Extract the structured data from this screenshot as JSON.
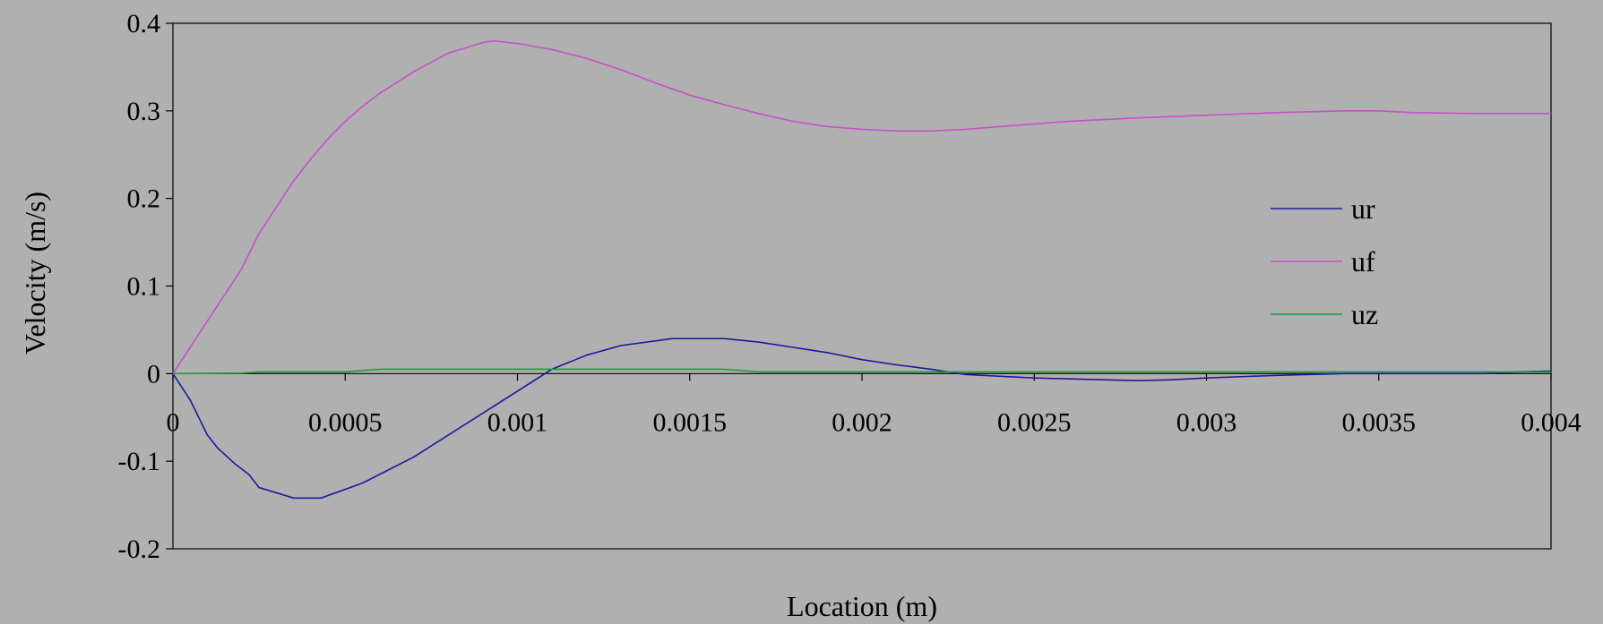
{
  "chart_data": {
    "type": "line",
    "xlabel": "Location (m)",
    "ylabel": "Velocity (m/s)",
    "xlim": [
      0,
      0.004
    ],
    "ylim": [
      -0.2,
      0.4
    ],
    "x_ticks": [
      0,
      0.0005,
      0.001,
      0.0015,
      0.002,
      0.0025,
      0.003,
      0.0035,
      0.004
    ],
    "x_tick_labels": [
      "0",
      "0.0005",
      "0.001",
      "0.0015",
      "0.002",
      "0.0025",
      "0.003",
      "0.0035",
      "0.004"
    ],
    "y_ticks": [
      -0.2,
      -0.1,
      0,
      0.1,
      0.2,
      0.3,
      0.4
    ],
    "y_tick_labels": [
      "-0.2",
      "-0.1",
      "0",
      "0.1",
      "0.2",
      "0.3",
      "0.4"
    ],
    "legend_position": "right",
    "grid": false,
    "series": [
      {
        "name": "ur",
        "color": "#1a1aa0",
        "x": [
          0,
          5e-05,
          0.0001,
          0.00013,
          0.00018,
          0.00022,
          0.00025,
          0.00035,
          0.00043,
          0.00055,
          0.0007,
          0.0009,
          0.0011,
          0.0012,
          0.0013,
          0.00145,
          0.0016,
          0.0017,
          0.0018,
          0.0019,
          0.002,
          0.0021,
          0.0022,
          0.0023,
          0.0025,
          0.0027,
          0.0028,
          0.0029,
          0.003,
          0.0032,
          0.0034,
          0.0036,
          0.0038,
          0.0039,
          0.004
        ],
        "y": [
          0,
          -0.03,
          -0.07,
          -0.085,
          -0.103,
          -0.115,
          -0.13,
          -0.142,
          -0.142,
          -0.125,
          -0.095,
          -0.045,
          0.005,
          0.021,
          0.032,
          0.04,
          0.04,
          0.036,
          0.03,
          0.024,
          0.016,
          0.01,
          0.005,
          -0.001,
          -0.005,
          -0.007,
          -0.008,
          -0.007,
          -0.005,
          -0.002,
          0,
          0,
          0,
          0.002,
          0.003
        ]
      },
      {
        "name": "uf",
        "color": "#c84fc8",
        "x": [
          0,
          5e-05,
          0.0001,
          0.00015,
          0.0002,
          0.00025,
          0.0003,
          0.00035,
          0.0004,
          0.00045,
          0.0005,
          0.00055,
          0.0006,
          0.0007,
          0.0008,
          0.0009,
          0.00093,
          0.001,
          0.0011,
          0.0012,
          0.0013,
          0.0014,
          0.0015,
          0.0016,
          0.0017,
          0.0018,
          0.0019,
          0.002,
          0.0021,
          0.0022,
          0.0023,
          0.0024,
          0.0025,
          0.0026,
          0.0027,
          0.0028,
          0.003,
          0.0032,
          0.0034,
          0.0035,
          0.0036,
          0.0038,
          0.004
        ],
        "y": [
          0,
          0.03,
          0.06,
          0.09,
          0.12,
          0.16,
          0.19,
          0.22,
          0.245,
          0.268,
          0.288,
          0.305,
          0.32,
          0.345,
          0.366,
          0.378,
          0.38,
          0.377,
          0.37,
          0.36,
          0.347,
          0.332,
          0.318,
          0.307,
          0.297,
          0.288,
          0.282,
          0.279,
          0.277,
          0.277,
          0.279,
          0.282,
          0.285,
          0.288,
          0.29,
          0.292,
          0.295,
          0.298,
          0.3,
          0.3,
          0.298,
          0.297,
          0.297
        ]
      },
      {
        "name": "uz",
        "color": "#1f9a3a",
        "x": [
          0,
          0.0002,
          0.00025,
          0.0005,
          0.0006,
          0.001,
          0.0016,
          0.0017,
          0.0025,
          0.0035,
          0.004
        ],
        "y": [
          0,
          0.0005,
          0.002,
          0.002,
          0.005,
          0.005,
          0.005,
          0.002,
          0.002,
          0.002,
          0.002
        ]
      }
    ]
  }
}
